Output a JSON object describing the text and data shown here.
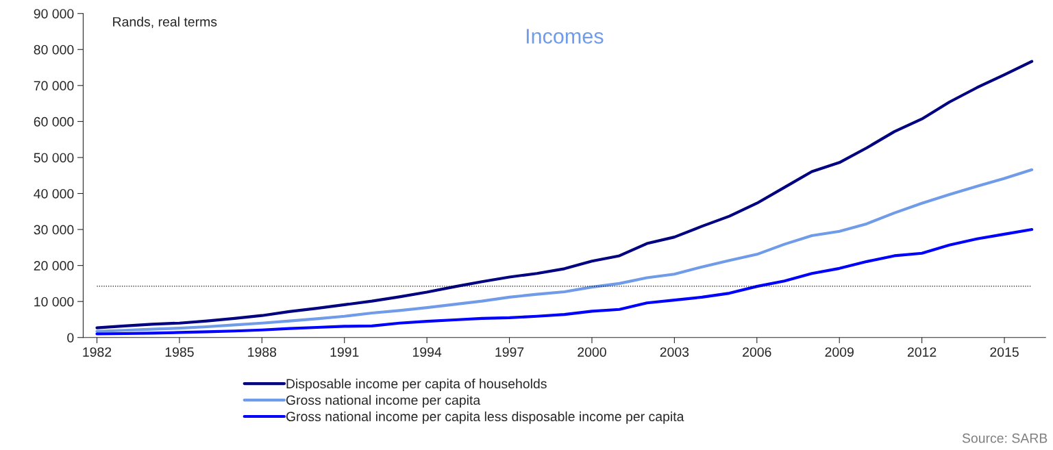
{
  "chart_data": {
    "type": "line",
    "title": "Incomes",
    "annotations": [
      "Rands, real terms",
      "Source: SARB"
    ],
    "x": [
      1982,
      1983,
      1984,
      1985,
      1986,
      1987,
      1988,
      1989,
      1990,
      1991,
      1992,
      1993,
      1994,
      1995,
      1996,
      1997,
      1998,
      1999,
      2000,
      2001,
      2002,
      2003,
      2004,
      2005,
      2006,
      2007,
      2008,
      2009,
      2010,
      2011,
      2012,
      2013,
      2014,
      2015,
      2016
    ],
    "series": [
      {
        "name": "Disposable income per capita of households",
        "color": "#000080",
        "values": [
          2700,
          3200,
          3700,
          4000,
          4600,
          5300,
          6100,
          7200,
          8100,
          9100,
          10100,
          11300,
          12600,
          14100,
          15500,
          16800,
          17800,
          19100,
          21200,
          22700,
          26100,
          27900,
          30900,
          33700,
          37300,
          41700,
          46100,
          48600,
          52700,
          57200,
          60700,
          65400,
          69400,
          73000,
          76700
        ]
      },
      {
        "name": "Gross national income per capita",
        "color": "#6f9be8",
        "values": [
          1700,
          2000,
          2300,
          2600,
          3000,
          3500,
          4000,
          4600,
          5200,
          5900,
          6800,
          7500,
          8300,
          9200,
          10100,
          11200,
          12000,
          12700,
          14000,
          15000,
          16600,
          17600,
          19600,
          21400,
          23100,
          25900,
          28300,
          29500,
          31600,
          34600,
          37300,
          39700,
          42000,
          44200,
          46600
        ]
      },
      {
        "name": "Gross national income per capita less disposable income per capita",
        "color": "#0000ff",
        "values": [
          1000,
          1100,
          1200,
          1400,
          1600,
          1800,
          2100,
          2500,
          2800,
          3100,
          3200,
          4000,
          4500,
          4900,
          5300,
          5500,
          5900,
          6400,
          7300,
          7800,
          9600,
          10400,
          11200,
          12300,
          14200,
          15700,
          17800,
          19200,
          21100,
          22700,
          23400,
          25700,
          27400,
          28700,
          30000
        ]
      }
    ],
    "xlim": [
      1981.5,
      2016.5
    ],
    "xticks": [
      1982,
      1985,
      1988,
      1991,
      1994,
      1997,
      2000,
      2003,
      2006,
      2009,
      2012,
      2015
    ],
    "ylim": [
      0,
      90000
    ],
    "yticks": [
      0,
      {
        "value": 10000,
        "label": "10 000"
      },
      {
        "value": 20000,
        "label": "20 000"
      },
      {
        "value": 30000,
        "label": "30 000"
      },
      {
        "value": 40000,
        "label": "40 000"
      },
      {
        "value": 50000,
        "label": "50 000"
      },
      {
        "value": 60000,
        "label": "60 000"
      },
      {
        "value": 70000,
        "label": "70 000"
      },
      {
        "value": 80000,
        "label": "80 000"
      },
      {
        "value": 90000,
        "label": "90 000"
      }
    ],
    "ref_lines": [
      {
        "axis": "y",
        "value": 14250,
        "color": "#000000",
        "line_style": "dotted"
      }
    ],
    "grid": false,
    "legend": "bottom",
    "marker": "none",
    "line_style": "solid"
  }
}
